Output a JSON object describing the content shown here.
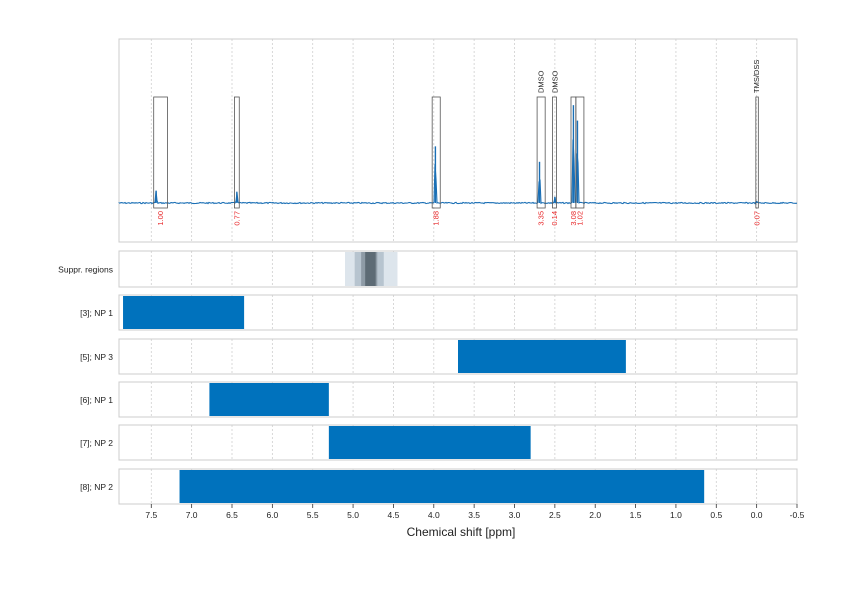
{
  "chart_data": {
    "type": "nmr-spectrum",
    "xlabel": "Chemical shift [ppm]",
    "xlim": [
      7.9,
      -0.5
    ],
    "x_ticks": [
      "7.5",
      "7.0",
      "6.5",
      "6.0",
      "5.5",
      "5.0",
      "4.5",
      "4.0",
      "3.5",
      "3.0",
      "2.5",
      "2.0",
      "1.5",
      "1.0",
      "0.5",
      "0.0",
      "-0.5"
    ],
    "x_tick_values": [
      7.5,
      7.0,
      6.5,
      6.0,
      5.5,
      5.0,
      4.5,
      4.0,
      3.5,
      3.0,
      2.5,
      2.0,
      1.5,
      1.0,
      0.5,
      0.0,
      -0.5
    ],
    "grid": true,
    "peaks": [
      {
        "ppm": 7.44,
        "height": 0.12
      },
      {
        "ppm": 6.44,
        "height": 0.11
      },
      {
        "ppm": 3.98,
        "height": 0.55
      },
      {
        "ppm": 2.69,
        "height": 0.4
      },
      {
        "ppm": 2.5,
        "height": 0.06
      },
      {
        "ppm": 2.27,
        "height": 0.95
      },
      {
        "ppm": 2.22,
        "height": 0.8
      },
      {
        "ppm": 0.0,
        "height": 0.02
      }
    ],
    "integrals": [
      {
        "label": "1.00",
        "from": 7.47,
        "to": 7.3
      },
      {
        "label": "0.77",
        "from": 6.47,
        "to": 6.41
      },
      {
        "label": "1.88",
        "from": 4.02,
        "to": 3.92
      },
      {
        "label": "3.35",
        "from": 2.72,
        "to": 2.62
      },
      {
        "label": "0.14",
        "from": 2.53,
        "to": 2.48
      },
      {
        "label": "3.08",
        "from": 2.3,
        "to": 2.24
      },
      {
        "label": "1.02",
        "from": 2.24,
        "to": 2.14
      },
      {
        "label": "0.07",
        "from": 0.01,
        "to": -0.01
      }
    ],
    "annotations": [
      {
        "text": "DMSO",
        "ppm": 2.67
      },
      {
        "text": "DMSO",
        "ppm": 2.5
      },
      {
        "text": "TMS/DSS",
        "ppm": 0.0
      }
    ],
    "suppression": {
      "label": "Suppr. regions",
      "bands": [
        {
          "from": 5.1,
          "to": 4.45,
          "shade": "#dde5ec"
        },
        {
          "from": 4.98,
          "to": 4.62,
          "shade": "#b7c4cf"
        },
        {
          "from": 4.9,
          "to": 4.7,
          "shade": "#8e9ba6"
        },
        {
          "from": 4.85,
          "to": 4.72,
          "shade": "#5d6b75"
        }
      ]
    },
    "tracks": [
      {
        "label": "[3]; NP 1",
        "from": 7.85,
        "to": 6.35
      },
      {
        "label": "[5]; NP 3",
        "from": 3.7,
        "to": 1.62
      },
      {
        "label": "[6]; NP 1",
        "from": 6.78,
        "to": 5.3
      },
      {
        "label": "[7]; NP 2",
        "from": 5.3,
        "to": 2.8
      },
      {
        "label": "[8]; NP 2",
        "from": 7.15,
        "to": 0.65
      }
    ]
  },
  "colors": {
    "spectrum": "#1a6fb5",
    "bar": "#0072bd",
    "integral_text": "#e8292b",
    "frame": "#cccccc",
    "grid": "#cfcfcf"
  }
}
